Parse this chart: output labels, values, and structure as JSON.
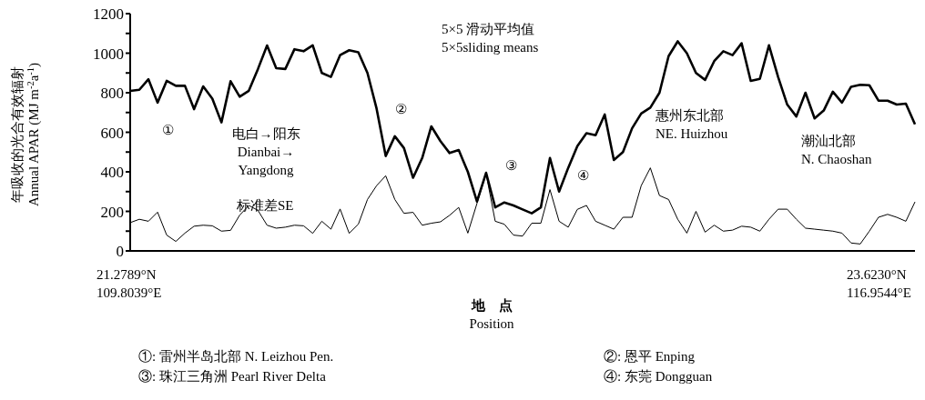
{
  "chart_data": {
    "type": "line",
    "xlabel": "地　点\nPosition",
    "ylabel": "年吸收的光合有效辐射\nAnnual APAR (MJ m$^{-2}$a$^{-1}$)",
    "categories": [
      null,
      null,
      null,
      null,
      null,
      null,
      null,
      null,
      null,
      null,
      null,
      null,
      null,
      null,
      null,
      null,
      null,
      null,
      null,
      null,
      null,
      null,
      null,
      null,
      null,
      null,
      null,
      null,
      null,
      null,
      null,
      null,
      null,
      null,
      null,
      null,
      null,
      null,
      null,
      null,
      null,
      null,
      null,
      null,
      null,
      null,
      null,
      null,
      null,
      null,
      null,
      null,
      null,
      null,
      null,
      null,
      null,
      null,
      null,
      null,
      null,
      null,
      null,
      null,
      null,
      null,
      null,
      null,
      null,
      null,
      null,
      null,
      null,
      null,
      null,
      null,
      null,
      null,
      null,
      null,
      null,
      null,
      null,
      null,
      null,
      null,
      null
    ],
    "series": [
      {
        "color": "#000000",
        "values": [
          809,
          815,
          868,
          750,
          860,
          835,
          835,
          717,
          832,
          770,
          650,
          858,
          780,
          810,
          920,
          1039,
          924,
          920,
          1020,
          1010,
          1040,
          900,
          880,
          990,
          1015,
          1005,
          900,
          720,
          480,
          580,
          520,
          370,
          470,
          630,
          555,
          495,
          510,
          400,
          250,
          395,
          220,
          245,
          230,
          210,
          190,
          220,
          470,
          300,
          420,
          530,
          595,
          585,
          690,
          460,
          500,
          620,
          695,
          725,
          800,
          985,
          1060,
          1000,
          900,
          865,
          960,
          1010,
          990,
          1050,
          860,
          870,
          1040,
          880,
          740,
          680,
          800,
          670,
          710,
          805,
          750,
          830,
          840,
          838,
          760,
          760,
          740,
          745,
          640
        ]
      },
      {
        "color": "#000000",
        "values": [
          143,
          160,
          150,
          196,
          80,
          48,
          90,
          125,
          130,
          127,
          100,
          104,
          181,
          230,
          205,
          130,
          115,
          120,
          130,
          127,
          89,
          150,
          110,
          212,
          89,
          135,
          260,
          330,
          380,
          260,
          190,
          195,
          130,
          140,
          147,
          180,
          220,
          90,
          240,
          390,
          150,
          135,
          80,
          75,
          140,
          140,
          310,
          150,
          120,
          210,
          230,
          150,
          130,
          110,
          170,
          170,
          330,
          420,
          280,
          260,
          160,
          90,
          200,
          95,
          130,
          100,
          105,
          125,
          120,
          100,
          160,
          211,
          211,
          160,
          115,
          110,
          105,
          100,
          90,
          40,
          35,
          100,
          170,
          185,
          170,
          150,
          248
        ]
      }
    ],
    "ylim": [
      0,
      1200
    ],
    "yticks": [
      0,
      {
        "value": 100,
        "label": null
      },
      200,
      {
        "value": 300,
        "label": null
      },
      400,
      {
        "value": 500,
        "label": null
      },
      600,
      {
        "value": 700,
        "label": null
      },
      800,
      {
        "value": 900,
        "label": null
      },
      1000,
      {
        "value": 1100,
        "label": null
      },
      1200
    ],
    "annotations": [
      "①",
      "电白→阳东\nDianbai→\nYangdong",
      "5×5 滑动平均值\n5×5sliding means",
      "②",
      "③",
      "④",
      "惠州东北部\nNE. Huizhou",
      "潮汕北部\nN. Chaoshan",
      "标准差SE",
      "21.2789°N\n109.8039°E",
      "23.6230°N\n116.9544°E",
      "①: 雷州半岛北部 N. Leizhou Pen.",
      "②: 恩平 Enping",
      "③: 珠江三角洲 Pearl River Delta",
      "④: 东莞 Dongguan"
    ]
  }
}
